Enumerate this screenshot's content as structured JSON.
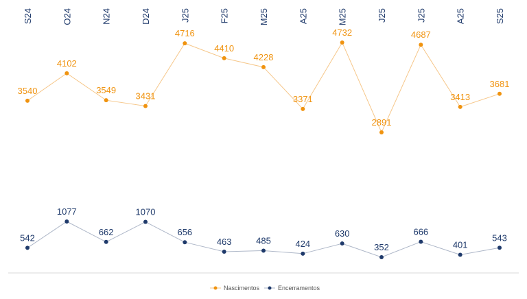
{
  "chart_data": {
    "type": "line",
    "categories": [
      "S24",
      "O24",
      "N24",
      "D24",
      "J25",
      "F25",
      "M25",
      "A25",
      "M25",
      "J25",
      "J25",
      "A25",
      "S25"
    ],
    "series": [
      {
        "name": "Nascimentos",
        "color": "#f0930f",
        "values": [
          3540,
          4102,
          3549,
          3431,
          4716,
          4410,
          4228,
          3371,
          4732,
          2891,
          4687,
          3413,
          3681
        ]
      },
      {
        "name": "Encerramentos",
        "color": "#1f3a6b",
        "values": [
          542,
          1077,
          662,
          1070,
          656,
          463,
          485,
          424,
          630,
          352,
          666,
          401,
          543
        ]
      }
    ],
    "title": "",
    "xlabel": "",
    "ylabel": "",
    "x_axis_position": "top",
    "grid": false,
    "legend_position": "bottom-center"
  }
}
